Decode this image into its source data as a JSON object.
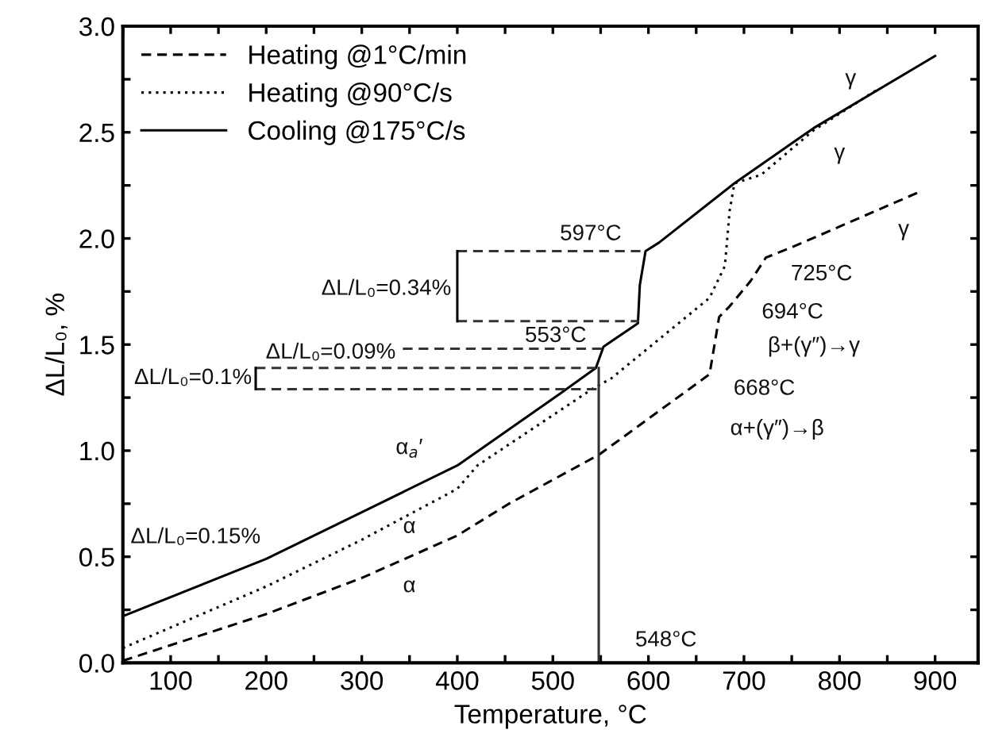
{
  "chart_data": {
    "type": "line",
    "xlabel": "Temperature, °C",
    "ylabel": "ΔL/L₀, %",
    "xlim": [
      50,
      945
    ],
    "ylim": [
      0,
      3
    ],
    "xticks": [
      {
        "value": 50,
        "label": null
      },
      100,
      {
        "value": 150,
        "label": null
      },
      200,
      {
        "value": 250,
        "label": null
      },
      300,
      {
        "value": 350,
        "label": null
      },
      400,
      {
        "value": 450,
        "label": null
      },
      500,
      {
        "value": 550,
        "label": null
      },
      600,
      {
        "value": 650,
        "label": null
      },
      700,
      {
        "value": 750,
        "label": null
      },
      800,
      {
        "value": 850,
        "label": null
      },
      900
    ],
    "yticks": [
      {
        "value": 0,
        "label": "0.0"
      },
      {
        "value": 0.25,
        "label": null
      },
      0.5,
      {
        "value": 0.75,
        "label": null
      },
      {
        "value": 1,
        "label": "1.0"
      },
      {
        "value": 1.25,
        "label": null
      },
      1.5,
      {
        "value": 1.75,
        "label": null
      },
      {
        "value": 2,
        "label": "2.0"
      },
      {
        "value": 2.25,
        "label": null
      },
      2.5,
      {
        "value": 2.75,
        "label": null
      },
      {
        "value": 3,
        "label": "3.0"
      }
    ],
    "grid": false,
    "legend": "top left",
    "marker": "none",
    "series": [
      {
        "name": "Heating @1°C/min",
        "color": "#000000",
        "line_style": "dashed",
        "x": [
          50,
          200,
          300,
          400,
          454,
          548,
          664,
          674,
          685,
          707,
          723,
          751,
          884
        ],
        "values": [
          0.01,
          0.23,
          0.4,
          0.6,
          0.75,
          0.98,
          1.36,
          1.63,
          1.68,
          1.8,
          1.91,
          1.96,
          2.22
        ]
      },
      {
        "name": "Heating @90°C/s",
        "color": "#000000",
        "line_style": "dotted",
        "x": [
          50,
          200,
          300,
          400,
          421,
          541,
          561,
          664,
          680,
          685,
          690,
          718,
          773,
          839
        ],
        "values": [
          0.07,
          0.36,
          0.58,
          0.82,
          0.93,
          1.29,
          1.34,
          1.72,
          1.87,
          2.13,
          2.26,
          2.3,
          2.51,
          2.7
        ]
      },
      {
        "name": "Cooling @175°C/s",
        "color": "#000000",
        "line_style": "solid",
        "x": [
          50,
          200,
          300,
          400,
          454,
          508,
          545,
          553,
          589,
          591,
          597,
          611,
          690,
          773,
          900
        ],
        "values": [
          0.22,
          0.49,
          0.71,
          0.93,
          1.1,
          1.27,
          1.39,
          1.49,
          1.6,
          1.78,
          1.94,
          1.98,
          2.26,
          2.52,
          2.86
        ]
      },
      {
        "color": "#333333",
        "line_style": "dashed",
        "x": [
          400,
          597
        ],
        "values": [
          1.94,
          1.94
        ]
      },
      {
        "color": "#333333",
        "line_style": "dashed",
        "x": [
          400,
          590
        ],
        "values": [
          1.61,
          1.61
        ]
      },
      {
        "color": "#333333",
        "line_style": "dashed",
        "x": [
          343,
          555
        ],
        "values": [
          1.48,
          1.48
        ]
      },
      {
        "color": "#333333",
        "line_style": "dashed",
        "x": [
          189,
          545
        ],
        "values": [
          1.39,
          1.39
        ]
      },
      {
        "color": "#333333",
        "line_style": "dashed",
        "x": [
          189,
          548
        ],
        "values": [
          1.29,
          1.29
        ]
      },
      {
        "color": "#000000",
        "line_style": "solid",
        "x": [
          400,
          400
        ],
        "values": [
          1.61,
          1.94
        ]
      },
      {
        "color": "#000000",
        "line_style": "solid",
        "x": [
          189,
          189
        ],
        "values": [
          1.29,
          1.39
        ]
      },
      {
        "color": "#333333",
        "line_style": "solid",
        "x": [
          548,
          548
        ],
        "values": [
          1.39,
          0
        ]
      }
    ],
    "annotations": [
      "597°C",
      "553°C",
      "725°C",
      "694°C",
      "β+(γ″)→γ",
      "668°C",
      "α+(γ″)→β",
      "γ",
      "γ",
      "γ",
      "α$_{a}$′",
      "α",
      "α",
      "ΔL/L₀=0.34%",
      "ΔL/L₀=0.09%",
      "ΔL/L₀=0.1%",
      "ΔL/L₀=0.15%",
      "548°C"
    ]
  }
}
